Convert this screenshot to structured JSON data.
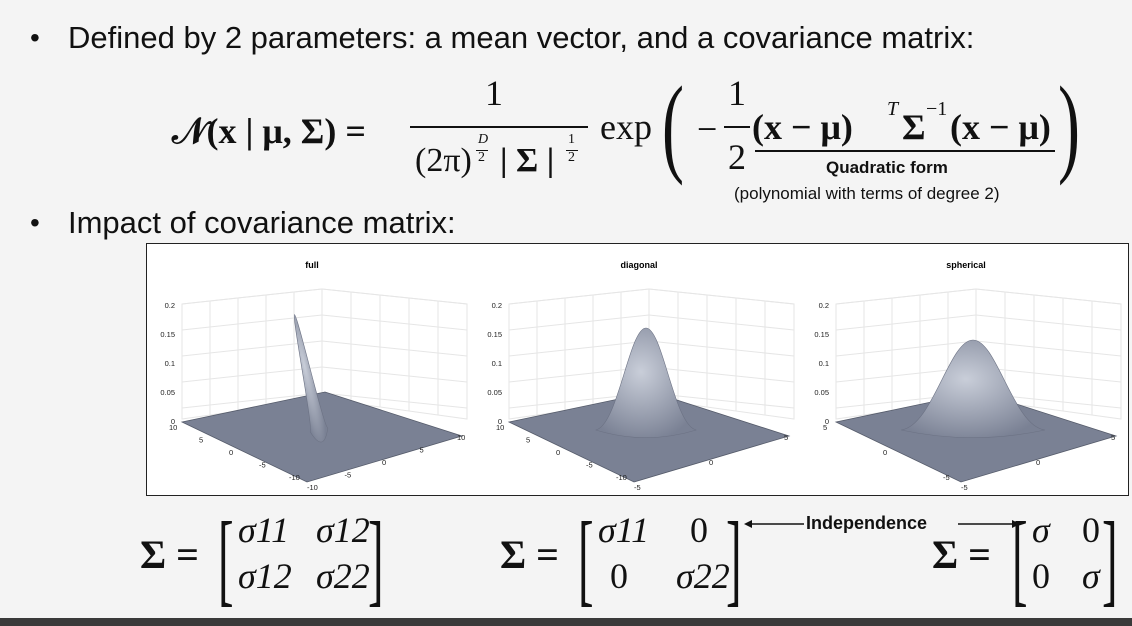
{
  "bullets": [
    "Defined by 2 parameters: a mean vector, and a covariance matrix:",
    "Impact of covariance matrix:"
  ],
  "formula": {
    "lhs": "𝒩(x | μ, Σ) =",
    "numerator": "1",
    "denominator_left": "(2π)",
    "exp_D": "D",
    "exp_2a": "2",
    "det": "| Σ |",
    "exp_1": "1",
    "exp_2b": "2",
    "exp": "exp",
    "minus": "−",
    "half_num": "1",
    "half_den": "2",
    "quad": "(x − μ)",
    "quad_T": "T",
    "sigma_inv": "Σ",
    "inv_exp": "−1",
    "quad2": "(x − μ)",
    "quad_label": "Quadratic form",
    "quad_note": "(polynomial with terms of degree 2)"
  },
  "plots": [
    {
      "title": "full",
      "zticks": [
        "0.2",
        "0.15",
        "0.1",
        "0.05",
        "0"
      ],
      "xticks": [
        "10",
        "5",
        "0",
        "-5",
        "-10"
      ],
      "yticks": [
        "-10",
        "-5",
        "0",
        "5",
        "10"
      ]
    },
    {
      "title": "diagonal",
      "zticks": [
        "0.2",
        "0.15",
        "0.1",
        "0.05",
        "0"
      ],
      "xticks": [
        "10",
        "5",
        "0",
        "-5",
        "-10"
      ],
      "yticks": [
        "-5",
        "0",
        "5"
      ]
    },
    {
      "title": "spherical",
      "zticks": [
        "0.2",
        "0.15",
        "0.1",
        "0.05",
        "0"
      ],
      "xticks": [
        "5",
        "0",
        "-5"
      ],
      "yticks": [
        "-5",
        "0",
        "5"
      ]
    }
  ],
  "matrices": {
    "full": {
      "lhs": "Σ =",
      "a": "σ11",
      "b": "σ12",
      "c": "σ12",
      "d": "σ22"
    },
    "diagonal": {
      "lhs": "Σ =",
      "a": "σ11",
      "b": "0",
      "c": "0",
      "d": "σ22"
    },
    "spherical": {
      "lhs": "Σ =",
      "a": "σ",
      "b": "0",
      "c": "0",
      "d": "σ"
    },
    "independence_label": "Independence"
  },
  "colors": {
    "surface": "#7a8194",
    "surface_light": "#c9ced9",
    "background": "#f4f4f4"
  }
}
